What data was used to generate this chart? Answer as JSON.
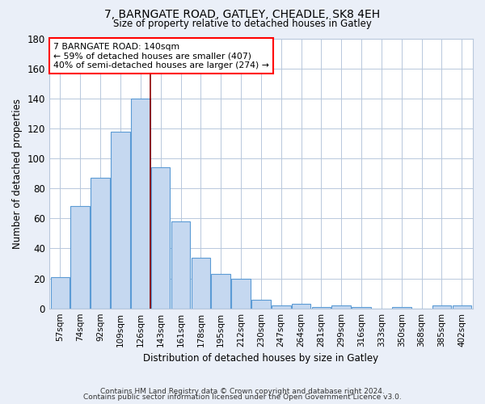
{
  "title1": "7, BARNGATE ROAD, GATLEY, CHEADLE, SK8 4EH",
  "title2": "Size of property relative to detached houses in Gatley",
  "xlabel": "Distribution of detached houses by size in Gatley",
  "ylabel": "Number of detached properties",
  "categories": [
    "57sqm",
    "74sqm",
    "92sqm",
    "109sqm",
    "126sqm",
    "143sqm",
    "161sqm",
    "178sqm",
    "195sqm",
    "212sqm",
    "230sqm",
    "247sqm",
    "264sqm",
    "281sqm",
    "299sqm",
    "316sqm",
    "333sqm",
    "350sqm",
    "368sqm",
    "385sqm",
    "402sqm"
  ],
  "values": [
    21,
    68,
    87,
    118,
    140,
    94,
    58,
    34,
    23,
    20,
    6,
    2,
    3,
    1,
    2,
    1,
    0,
    1,
    0,
    2,
    2
  ],
  "bar_color": "#c5d8f0",
  "bar_edge_color": "#5b9bd5",
  "red_line_x": 4.5,
  "ylim": [
    0,
    180
  ],
  "yticks": [
    0,
    20,
    40,
    60,
    80,
    100,
    120,
    140,
    160,
    180
  ],
  "annotation_text1": "7 BARNGATE ROAD: 140sqm",
  "annotation_text2": "← 59% of detached houses are smaller (407)",
  "annotation_text3": "40% of semi-detached houses are larger (274) →",
  "footer1": "Contains HM Land Registry data © Crown copyright and database right 2024.",
  "footer2": "Contains public sector information licensed under the Open Government Licence v3.0.",
  "bg_color": "#eaeff8",
  "plot_bg_color": "#eaeff8",
  "grid_color": "#b8c8dc",
  "bar_area_bg": "#ffffff"
}
